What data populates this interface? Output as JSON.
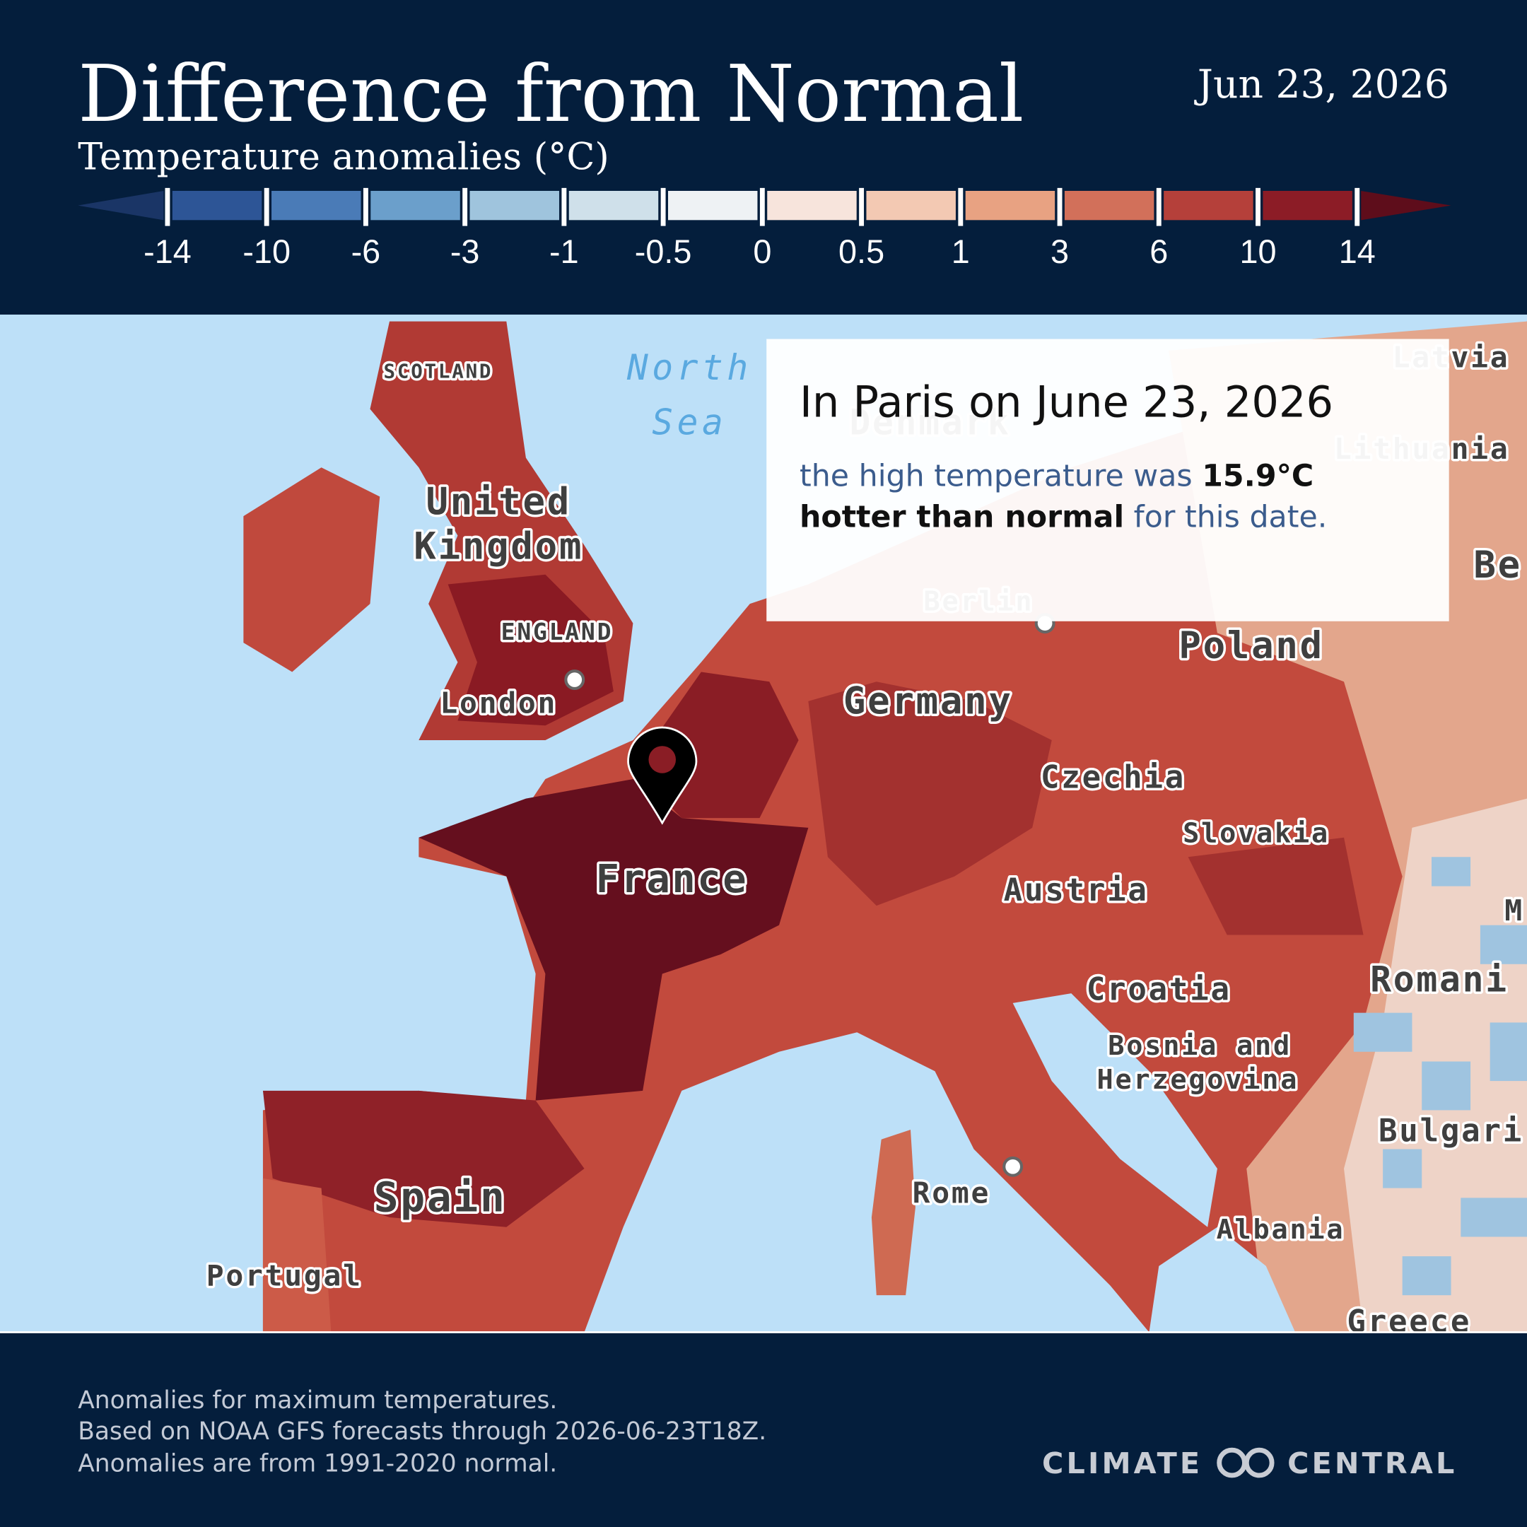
{
  "header": {
    "title": "Difference from Normal",
    "subtitle": "Temperature anomalies (°C)",
    "date": "Jun 23, 2026"
  },
  "legend": {
    "ticks": [
      -14,
      -10,
      -6,
      -3,
      -1,
      -0.5,
      0,
      0.5,
      1,
      3,
      6,
      10,
      14
    ],
    "colors": [
      "#1a3566",
      "#2d5596",
      "#4a7bb7",
      "#6b9fcb",
      "#9fc4dd",
      "#cfe0ea",
      "#eef2f4",
      "#f7e4dc",
      "#f3c9b3",
      "#e8a282",
      "#d2705a",
      "#b5403a",
      "#8c1c26",
      "#5e0d1b"
    ]
  },
  "map": {
    "labels": [
      "SCOTLAND",
      "North",
      "Sea",
      "Denmark",
      "Latvia",
      "Lithuania",
      "United",
      "Kingdom",
      "ENGLAND",
      "London",
      "Berlin",
      "Poland",
      "Be",
      "Germany",
      "Czechia",
      "Slovakia",
      "France",
      "Austria",
      "M",
      "Romani",
      "Croatia",
      "Bosnia and",
      "Herzegovina",
      "Bulgari",
      "Rome",
      "Spain",
      "Albania",
      "Portugal",
      "Greece"
    ]
  },
  "callout": {
    "title": "In Paris on June 23, 2026",
    "body": [
      "the high temperature was ",
      "15.9°C hotter than normal",
      " for this date."
    ]
  },
  "footer": {
    "notes": [
      "Anomalies for maximum temperatures.",
      "Based on NOAA GFS forecasts through 2026-06-23T18Z.",
      "Anomalies are from 1991-2020 normal."
    ],
    "logo": [
      "CLIMATE",
      "CENTRAL"
    ]
  }
}
